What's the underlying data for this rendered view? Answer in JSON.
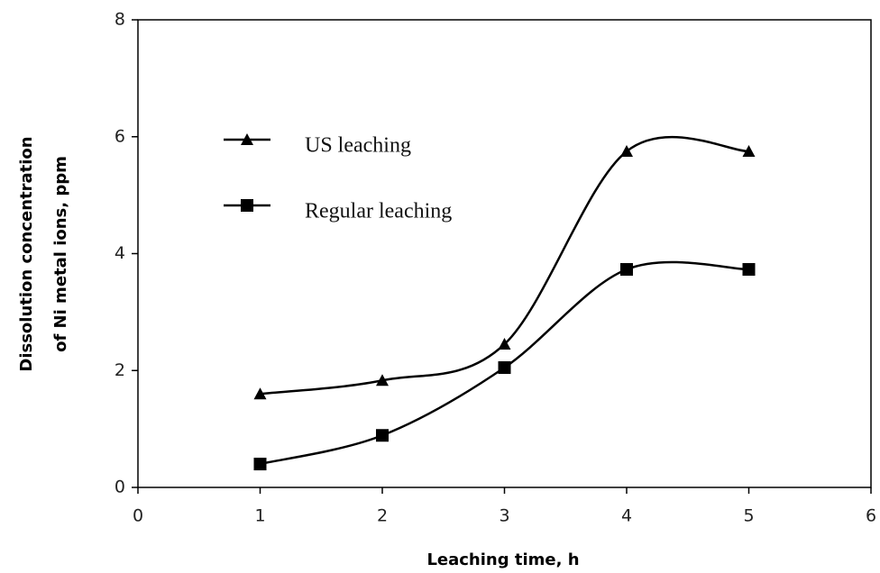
{
  "chart_data": {
    "type": "line",
    "xlabel": "Leaching time, h",
    "ylabel": [
      "Dissolution concentration",
      "of Ni metal ions, ppm"
    ],
    "x": [
      1,
      2,
      3,
      4,
      5
    ],
    "series": [
      {
        "name": "US leaching",
        "color": "#000000",
        "marker": "triangle",
        "values": [
          1.6,
          1.83,
          2.45,
          5.75,
          5.75
        ]
      },
      {
        "name": "Regular leaching",
        "color": "#000000",
        "marker": "square",
        "values": [
          0.4,
          0.89,
          2.05,
          3.73,
          3.73
        ]
      }
    ],
    "xlim": [
      0,
      6
    ],
    "xticks": [
      0,
      1,
      2,
      3,
      4,
      5,
      6
    ],
    "ylim": [
      0,
      8
    ],
    "yticks": [
      0,
      2,
      4,
      6,
      8
    ],
    "smooth": true,
    "grid": false,
    "legend": "upper left"
  }
}
